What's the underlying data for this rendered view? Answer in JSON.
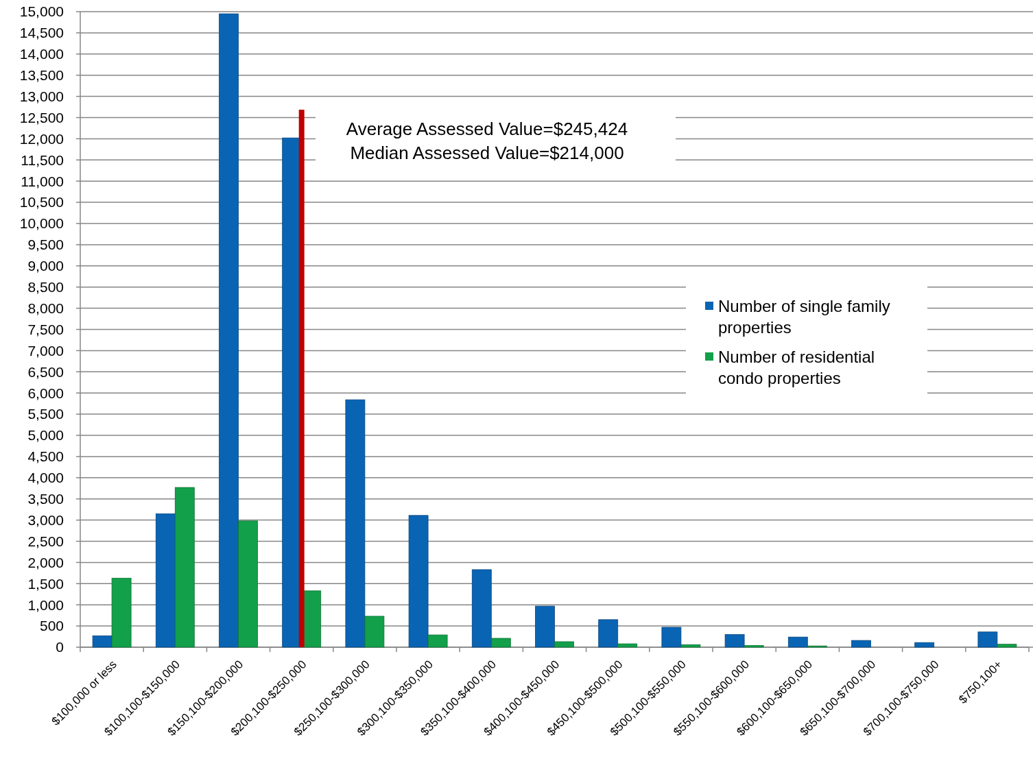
{
  "chart_data": {
    "type": "bar",
    "categories": [
      "$100,000 or less",
      "$100,100-$150,000",
      "$150,100-$200,000",
      "$200,100-$250,000",
      "$250,100-$300,000",
      "$300,100-$350,000",
      "$350,100-$400,000",
      "$400,100-$450,000",
      "$450,100-$500,000",
      "$500,100-$550,000",
      "$550,100-$600,000",
      "$600,100-$650,000",
      "$650,100-$700,000",
      "$700,100-$750,000",
      "$750,100+"
    ],
    "series": [
      {
        "name": "Number of single family properties",
        "color": "#0a64b4",
        "values": [
          270,
          3150,
          14950,
          12020,
          5840,
          3110,
          1830,
          970,
          650,
          470,
          300,
          240,
          160,
          110,
          360
        ]
      },
      {
        "name": "Number of residential condo properties",
        "color": "#12a04a",
        "values": [
          1630,
          3770,
          2980,
          1330,
          730,
          290,
          210,
          130,
          80,
          60,
          40,
          30,
          0,
          0,
          70
        ]
      }
    ],
    "ylim": [
      0,
      15000
    ],
    "yticks": [
      {
        "value": 0,
        "label": "0"
      },
      {
        "value": 500,
        "label": "500"
      },
      {
        "value": 1000,
        "label": "1,000"
      },
      {
        "value": 1500,
        "label": "1,500"
      },
      {
        "value": 2000,
        "label": "2,000"
      },
      {
        "value": 2500,
        "label": "2,500"
      },
      {
        "value": 3000,
        "label": "3,000"
      },
      {
        "value": 3500,
        "label": "3,500"
      },
      {
        "value": 4000,
        "label": "4,000"
      },
      {
        "value": 4500,
        "label": "4,500"
      },
      {
        "value": 5000,
        "label": "5,000"
      },
      {
        "value": 5500,
        "label": "5,500"
      },
      {
        "value": 6000,
        "label": "6,000"
      },
      {
        "value": 6500,
        "label": "6,500"
      },
      {
        "value": 7000,
        "label": "7,000"
      },
      {
        "value": 7500,
        "label": "7,500"
      },
      {
        "value": 8000,
        "label": "8,000"
      },
      {
        "value": 8500,
        "label": "8,500"
      },
      {
        "value": 9000,
        "label": "9,000"
      },
      {
        "value": 9500,
        "label": "9,500"
      },
      {
        "value": 10000,
        "label": "10,000"
      },
      {
        "value": 10500,
        "label": "10,500"
      },
      {
        "value": 11000,
        "label": "11,000"
      },
      {
        "value": 11500,
        "label": "11,500"
      },
      {
        "value": 12000,
        "label": "12,000"
      },
      {
        "value": 12500,
        "label": "12,500"
      },
      {
        "value": 13000,
        "label": "13,000"
      },
      {
        "value": 13500,
        "label": "13,500"
      },
      {
        "value": 14000,
        "label": "14,000"
      },
      {
        "value": 14500,
        "label": "14,500"
      },
      {
        "value": 15000,
        "label": "15,000"
      }
    ],
    "grid": "y",
    "legend": "right",
    "ref_lines": [
      {
        "axis": "x",
        "value": "$200,100-$250,000",
        "color": "#c00000"
      }
    ],
    "annotations": [
      "Average Assessed Value=$245,424",
      "Median Assessed Value=$214,000"
    ]
  }
}
